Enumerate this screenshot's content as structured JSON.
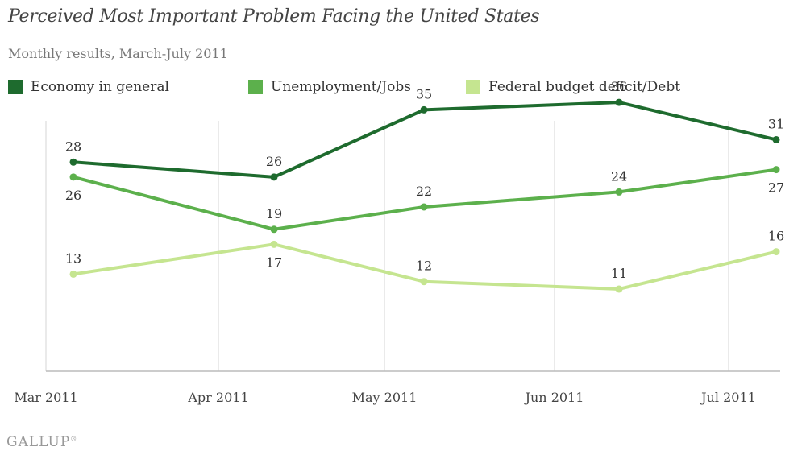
{
  "header": {
    "title": "Perceived Most Important Problem Facing the United States",
    "subtitle": "Monthly results, March-July 2011"
  },
  "brand": "GALLUP",
  "chart_data": {
    "type": "line",
    "title": "Perceived Most Important Problem Facing the United States",
    "subtitle": "Monthly results, March-July 2011",
    "x_tick_labels": [
      "Mar 2011",
      "Apr 2011",
      "May 2011",
      "Jun 2011",
      "Jul 2011"
    ],
    "points_x": [
      "2011-03",
      "2011-04",
      "2011-05",
      "2011-06",
      "2011-07"
    ],
    "ylim": [
      0,
      40
    ],
    "grid": "vertical",
    "legend_position": "top",
    "series": [
      {
        "name": "Economy in general",
        "color": "#1e6b2e",
        "values": [
          28,
          26,
          35,
          36,
          31
        ],
        "label_pos": [
          "above",
          "above",
          "above",
          "above",
          "above"
        ]
      },
      {
        "name": "Unemployment/Jobs",
        "color": "#5cb04c",
        "values": [
          26,
          19,
          22,
          24,
          27
        ],
        "label_pos": [
          "below",
          "above",
          "above",
          "above",
          "below"
        ]
      },
      {
        "name": "Federal budget deficit/Debt",
        "color": "#c5e590",
        "values": [
          13,
          17,
          12,
          11,
          16
        ],
        "label_pos": [
          "above",
          "below",
          "above",
          "above",
          "above"
        ]
      }
    ]
  }
}
